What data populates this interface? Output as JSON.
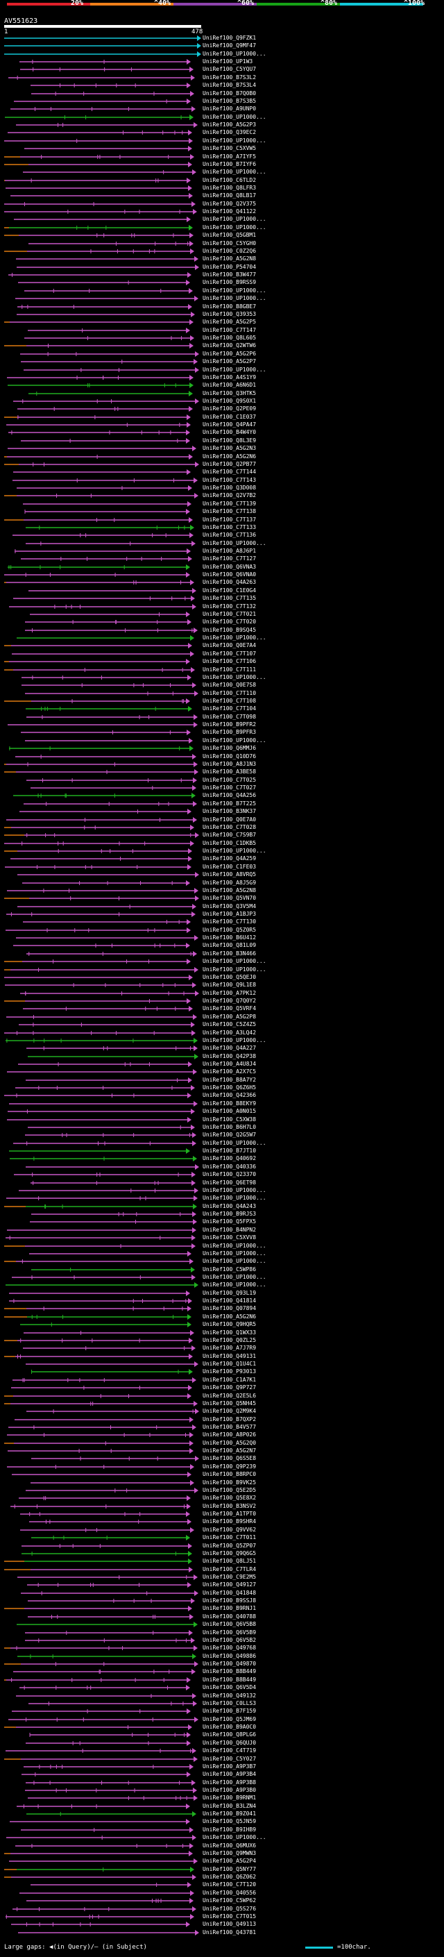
{
  "scale": {
    "labels": [
      "20%",
      "^40%",
      "^60%",
      "^80%",
      "^100%"
    ],
    "colors": [
      "#e0202a",
      "#ef7f1a",
      "#8e44ad",
      "#16a316",
      "#12c8d8"
    ]
  },
  "query": {
    "name": "AV551623",
    "start": "1",
    "end": "478"
  },
  "colors": {
    "purple": "#c857c8",
    "green": "#20b020",
    "orange": "#e07a10",
    "cyan": "#12c8d8",
    "white": "#ffffff"
  },
  "hits": [
    "UniRef100_Q9FZK1",
    "UniRef100_Q9MF47",
    "UniRef100_UP1000...",
    "UniRef100_UP1W3",
    "UniRef100_C5YQU7",
    "UniRef100_B7S3L2",
    "UniRef100_B7S3L4",
    "UniRef100_B7Q0B0",
    "UniRef100_B7S3B5",
    "UniRef100_A9UNP0",
    "UniRef100_UP1000...",
    "UniRef100_A5G2P3",
    "UniRef100_Q39EC2",
    "UniRef100_UP1000...",
    "UniRef100_C5XVW5",
    "UniRef100_A7IYF5",
    "UniRef100_B7IYF6",
    "UniRef100_UP1000...",
    "UniRef100_C6TLD2",
    "UniRef100_Q8LFR3",
    "UniRef100_Q8LB17",
    "UniRef100_Q2V375",
    "UniRef100_Q41122",
    "UniRef100_UP1000...",
    "UniRef100_UP1000...",
    "UniRef100_Q5GBM1",
    "UniRef100_C5YGH0",
    "UniRef100_C0Z2Q6",
    "UniRef100_A5G2N8",
    "UniRef100_P54704",
    "UniRef100_B3W477",
    "UniRef100_B9RSS9",
    "UniRef100_UP1000...",
    "UniRef100_UP1000...",
    "UniRef100_B8GBE7",
    "UniRef100_Q39353",
    "UniRef100_A5G2P5",
    "UniRef100_C7T147",
    "UniRef100_Q8L605",
    "UniRef100_Q2WTW6",
    "UniRef100_A5G2P6",
    "UniRef100_A5G2P7",
    "UniRef100_UP1000...",
    "UniRef100_A4S1Y9",
    "UniRef100_A6N6D1",
    "UniRef100_Q3HTK5",
    "UniRef100_Q9S0X1",
    "UniRef100_Q2PE09",
    "UniRef100_C1E037",
    "UniRef100_Q4PA47",
    "UniRef100_B4W4Y0",
    "UniRef100_Q8L3E9",
    "UniRef100_A5G2N3",
    "UniRef100_A5G2N6",
    "UniRef100_Q2PB77",
    "UniRef100_C7T144",
    "UniRef100_C7T143",
    "UniRef100_Q3D008",
    "UniRef100_Q2V7B2",
    "UniRef100_C7T139",
    "UniRef100_C7T138",
    "UniRef100_C7T137",
    "UniRef100_C7T133",
    "UniRef100_C7T136",
    "UniRef100_UP1000...",
    "UniRef100_A8J6P1",
    "UniRef100_C7T127",
    "UniRef100_Q6VNA3",
    "UniRef100_Q6VNA0",
    "UniRef100_Q4A263",
    "UniRef100_C1E0G4",
    "UniRef100_C7T135",
    "UniRef100_C7T132",
    "UniRef100_C7T021",
    "UniRef100_C7T020",
    "UniRef100_B9SQ45",
    "UniRef100_UP1000...",
    "UniRef100_Q0E7A4",
    "UniRef100_C7T107",
    "UniRef100_C7T106",
    "UniRef100_C7T111",
    "UniRef100_UP1000...",
    "UniRef100_Q0E7S8",
    "UniRef100_C7T110",
    "UniRef100_C7T108",
    "UniRef100_C7T104",
    "UniRef100_C7T098",
    "UniRef100_B9PFR2",
    "UniRef100_B9PFR3",
    "UniRef100_UP1000...",
    "UniRef100_Q6MMJ6",
    "UniRef100_Q10D76",
    "UniRef100_A8J1N3",
    "UniRef100_A3BE58",
    "UniRef100_C7T025",
    "UniRef100_C7T027",
    "UniRef100_Q4A256",
    "UniRef100_B7T225",
    "UniRef100_B3NK37",
    "UniRef100_Q0E7A0",
    "UniRef100_C7T028",
    "UniRef100_C7S9B7",
    "UniRef100_C1DKB5",
    "UniRef100_UP1000...",
    "UniRef100_Q4A259",
    "UniRef100_C1FE03",
    "UniRef100_A8VRQ5",
    "UniRef100_A8J5G9",
    "UniRef100_A5G2N8",
    "UniRef100_Q5VN70",
    "UniRef100_Q3V5M4",
    "UniRef100_A1BJP3",
    "UniRef100_C7T130",
    "UniRef100_Q5Z0R5",
    "UniRef100_B6U412",
    "UniRef100_Q81L09",
    "UniRef100_B3N466",
    "UniRef100_UP1000...",
    "UniRef100_UP1000...",
    "UniRef100_Q5QEJ0",
    "UniRef100_Q9L1E8",
    "UniRef100_A7PK12",
    "UniRef100_Q7Q0Y2",
    "UniRef100_Q5VRF4",
    "UniRef100_A5G2P8",
    "UniRef100_C5Z4Z5",
    "UniRef100_A3LQ42",
    "UniRef100_UP1000...",
    "UniRef100_Q4A227",
    "UniRef100_Q42P38",
    "UniRef100_A4U8J4",
    "UniRef100_A2X7C5",
    "UniRef100_B8A7Y2",
    "UniRef100_Q6Z6H5",
    "UniRef100_Q42366",
    "UniRef100_B8EKY9",
    "UniRef100_A0N015",
    "UniRef100_C5XW38",
    "UniRef100_B6H7L0",
    "UniRef100_Q2G5W7",
    "UniRef100_UP1000...",
    "UniRef100_B7JT10",
    "UniRef100_Q40692",
    "UniRef100_Q40336",
    "UniRef100_Q23370",
    "UniRef100_Q6ET98",
    "UniRef100_UP1000...",
    "UniRef100_UP1000...",
    "UniRef100_Q4A243",
    "UniRef100_B9RJS3",
    "UniRef100_Q5FPX5",
    "UniRef100_B4NPN2",
    "UniRef100_C5XVV8",
    "UniRef100_UP1000...",
    "UniRef100_UP1000...",
    "UniRef100_UP1000...",
    "UniRef100_C5WP86",
    "UniRef100_UP1000...",
    "UniRef100_UP1000...",
    "UniRef100_Q93L19",
    "UniRef100_Q41814",
    "UniRef100_Q07894",
    "UniRef100_A5G2N6",
    "UniRef100_Q9HQR5",
    "UniRef100_Q1WX33",
    "UniRef100_Q0ZL25",
    "UniRef100_A7J7R9",
    "UniRef100_Q49131",
    "UniRef100_Q1U4C1",
    "UniRef100_P93013",
    "UniRef100_C1A7K1",
    "UniRef100_Q9P727",
    "UniRef100_Q2E5L6",
    "UniRef100_Q5NH45",
    "UniRef100_Q2M9K4",
    "UniRef100_B7QXP2",
    "UniRef100_B4V577",
    "UniRef100_A8P026",
    "UniRef100_A5G2Q0",
    "UniRef100_A5G2N7",
    "UniRef100_Q6S5E8",
    "UniRef100_Q9P239",
    "UniRef100_B8RPC0",
    "UniRef100_B9VK25",
    "UniRef100_Q5E2D5",
    "UniRef100_Q5E8X2",
    "UniRef100_B3NSV2",
    "UniRef100_A1TPT0",
    "UniRef100_B9SHR4",
    "UniRef100_Q9VV62",
    "UniRef100_C7T011",
    "UniRef100_Q5ZP07",
    "UniRef100_Q9Q6G5",
    "UniRef100_Q8LJ51",
    "UniRef100_C7TLR4",
    "UniRef100_C9E2M5",
    "UniRef100_Q49127",
    "UniRef100_Q41848",
    "UniRef100_B9SSJ8",
    "UniRef100_B9RNJ1",
    "UniRef100_Q40788",
    "UniRef100_Q6V5B8",
    "UniRef100_Q6V5B9",
    "UniRef100_Q6V5B2",
    "UniRef100_Q49768",
    "UniRef100_Q49886",
    "UniRef100_Q49870",
    "UniRef100_B8B449",
    "UniRef100_B8B449",
    "UniRef100_Q6V5D4",
    "UniRef100_Q49132",
    "UniRef100_C0LLS3",
    "UniRef100_B7F159",
    "UniRef100_Q5JM69",
    "UniRef100_B9A0C0",
    "UniRef100_Q8PLG6",
    "UniRef100_Q6QUJ0",
    "UniRef100_C4T719",
    "UniRef100_C5Y027",
    "UniRef100_A9P3B7",
    "UniRef100_A9P3B4",
    "UniRef100_A9P3B8",
    "UniRef100_A9P3B0",
    "UniRef100_B9RNM1",
    "UniRef100_B3LZN4",
    "UniRef100_B9Z041",
    "UniRef100_Q5JN59",
    "UniRef100_B9IHB9",
    "UniRef100_UP1000...",
    "UniRef100_Q6MUX6",
    "UniRef100_Q9MWN3",
    "UniRef100_A5G2P4",
    "UniRef100_Q5NY77",
    "UniRef100_Q6Z062",
    "UniRef100_C7T120",
    "UniRef100_Q40556",
    "UniRef100_C5WP62",
    "UniRef100_Q5S276",
    "UniRef100_C7T015",
    "UniRef100_Q49113",
    "UniRef100_Q43781"
  ],
  "legend": {
    "gaps": "Large gaps: ◀(in Query)/— (in Subject)",
    "key": "=100char."
  }
}
